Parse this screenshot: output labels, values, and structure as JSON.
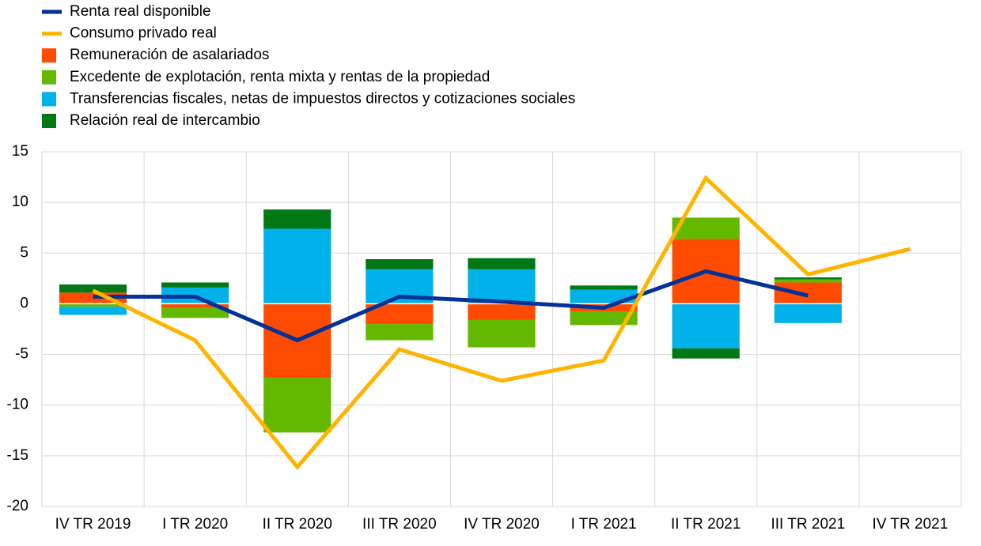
{
  "chart_data": {
    "type": "bar",
    "categories": [
      "IV TR 2019",
      "I TR 2020",
      "II TR 2020",
      "III TR 2020",
      "IV TR 2020",
      "I TR 2021",
      "II TR 2021",
      "III TR 2021",
      "IV TR 2021"
    ],
    "series": [
      {
        "name": "Renta real disponible",
        "type": "line",
        "color": "#003299",
        "values": [
          0.7,
          0.7,
          -3.6,
          0.7,
          0.2,
          -0.4,
          3.2,
          0.8,
          null
        ]
      },
      {
        "name": "Consumo privado real",
        "type": "line",
        "color": "#ffb400",
        "values": [
          1.3,
          -3.6,
          -16.1,
          -4.5,
          -7.6,
          -5.6,
          12.4,
          2.9,
          5.4
        ]
      },
      {
        "name": "Remuneración de asalariados",
        "type": "bar",
        "color": "#ff4b00",
        "values": [
          1.1,
          -0.4,
          -7.3,
          -2.0,
          -1.6,
          -0.8,
          6.4,
          2.1,
          null
        ]
      },
      {
        "name": "Excedente de explotación, renta mixta y rentas de la propiedad",
        "type": "bar",
        "color": "#65b800",
        "values": [
          -0.3,
          -1.0,
          -5.4,
          -1.6,
          -2.7,
          -1.3,
          2.1,
          0.3,
          null
        ]
      },
      {
        "name": "Transferencias fiscales, netas de impuestos directos y cotizaciones sociales",
        "type": "bar",
        "color": "#00b1ea",
        "values": [
          -0.8,
          1.6,
          7.4,
          3.4,
          3.4,
          1.4,
          -4.4,
          -1.9,
          null
        ]
      },
      {
        "name": "Relación real de intercambio",
        "type": "bar",
        "color": "#007816",
        "values": [
          0.8,
          0.5,
          1.9,
          1.0,
          1.1,
          0.4,
          -1.0,
          0.2,
          null
        ]
      }
    ],
    "ylim": [
      -20,
      15
    ],
    "yticks": [
      -20,
      -15,
      -10,
      -5,
      0,
      5,
      10,
      15
    ],
    "grid": true
  }
}
